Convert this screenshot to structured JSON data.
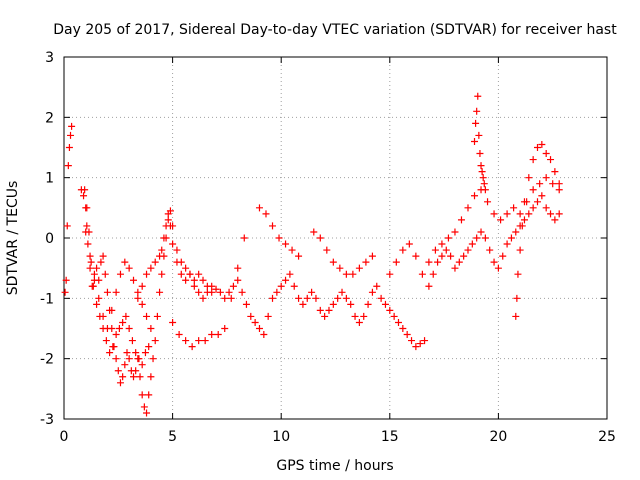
{
  "chart_data": {
    "type": "scatter",
    "title": "Day 205 of 2017, Sidereal Day-to-day VTEC variation (SDTVAR) for receiver hast",
    "xlabel": "GPS time / hours",
    "ylabel": "SDTVAR / TECUs",
    "xlim": [
      0,
      25
    ],
    "ylim": [
      -3,
      3
    ],
    "xticks": [
      0,
      5,
      10,
      15,
      20,
      25
    ],
    "yticks": [
      -3,
      -2,
      -1,
      0,
      1,
      2,
      3
    ],
    "grid": true,
    "marker": "+",
    "color": "#ff0000",
    "series": [
      {
        "name": "SDTVAR",
        "x": [
          0.05,
          0.1,
          0.15,
          0.2,
          0.25,
          0.3,
          0.35,
          0.8,
          0.9,
          1.0,
          1.05,
          1.1,
          1.2,
          1.3,
          1.4,
          1.5,
          1.6,
          1.7,
          1.8,
          1.9,
          2.0,
          2.1,
          2.2,
          2.3,
          2.4,
          2.5,
          2.6,
          2.7,
          2.8,
          2.9,
          3.0,
          3.1,
          3.2,
          3.3,
          3.4,
          3.5,
          3.6,
          3.7,
          3.8,
          3.9,
          4.0,
          4.1,
          4.2,
          4.3,
          4.4,
          4.5,
          4.6,
          4.7,
          4.8,
          4.9,
          5.0,
          5.2,
          5.4,
          5.6,
          5.8,
          6.0,
          6.2,
          6.4,
          6.6,
          6.8,
          7.0,
          7.2,
          7.4,
          7.6,
          7.8,
          0.95,
          1.05,
          1.15,
          1.25,
          1.35,
          1.5,
          1.65,
          1.8,
          1.95,
          2.1,
          2.25,
          2.4,
          2.55,
          2.7,
          2.85,
          3.0,
          3.15,
          3.3,
          3.45,
          3.6,
          3.75,
          3.9,
          1.0,
          1.2,
          1.4,
          1.6,
          1.8,
          2.0,
          2.2,
          2.4,
          2.6,
          2.8,
          3.0,
          3.2,
          3.4,
          3.6,
          3.8,
          4.0,
          3.4,
          3.6,
          3.8,
          4.0,
          4.2,
          4.4,
          4.5,
          4.6,
          4.7,
          4.8,
          4.9,
          5.0,
          5.2,
          5.4,
          5.6,
          5.8,
          6.0,
          6.2,
          6.4,
          6.6,
          6.8,
          5.0,
          5.3,
          5.6,
          5.9,
          6.2,
          6.5,
          6.8,
          7.1,
          7.4,
          7.7,
          8.0,
          8.3,
          8.0,
          8.2,
          8.4,
          8.6,
          8.8,
          9.0,
          9.2,
          9.4,
          9.6,
          9.8,
          10.0,
          10.2,
          10.4,
          10.6,
          10.8,
          11.0,
          11.2,
          11.4,
          11.6,
          11.8,
          12.0,
          12.2,
          12.4,
          12.6,
          12.8,
          13.0,
          13.2,
          13.4,
          13.6,
          13.8,
          14.0,
          14.2,
          14.4,
          14.6,
          14.8,
          15.0,
          15.2,
          15.4,
          15.6,
          15.8,
          16.0,
          16.2,
          16.4,
          16.6,
          9.0,
          9.3,
          9.6,
          9.9,
          10.2,
          10.5,
          10.8,
          11.5,
          11.8,
          12.1,
          12.4,
          12.7,
          13.0,
          13.3,
          13.6,
          13.9,
          14.2,
          15.0,
          15.3,
          15.6,
          15.9,
          16.2,
          16.5,
          16.8,
          17.1,
          17.4,
          17.7,
          18.0,
          18.3,
          18.6,
          18.9,
          19.2,
          19.5,
          19.8,
          20.1,
          20.4,
          20.7,
          21.0,
          21.3,
          21.6,
          21.9,
          22.2,
          22.5,
          22.8,
          16.8,
          17.0,
          17.2,
          17.4,
          17.6,
          17.8,
          18.0,
          18.2,
          18.4,
          18.6,
          18.8,
          19.0,
          19.2,
          19.4,
          19.6,
          19.8,
          20.0,
          20.2,
          20.4,
          20.6,
          20.8,
          21.0,
          21.2,
          21.4,
          21.6,
          21.8,
          22.0,
          22.2,
          22.4,
          22.6,
          22.8,
          18.9,
          18.95,
          19.0,
          19.05,
          19.1,
          19.15,
          19.2,
          19.25,
          19.3,
          19.35,
          19.4,
          20.8,
          20.85,
          20.9,
          21.0,
          21.1,
          21.2,
          21.4,
          21.6,
          21.8,
          22.0,
          22.2,
          22.4,
          22.6,
          22.8
        ],
        "y": [
          -0.9,
          -0.7,
          0.2,
          1.2,
          1.5,
          1.7,
          1.85,
          0.8,
          0.7,
          0.5,
          0.2,
          -0.1,
          -0.5,
          -0.8,
          -0.6,
          -0.5,
          -0.7,
          -0.4,
          -0.3,
          -0.6,
          -0.9,
          -1.2,
          -1.5,
          -1.8,
          -2.0,
          -2.2,
          -2.4,
          -2.3,
          -2.1,
          -1.9,
          -2.0,
          -2.2,
          -2.3,
          -2.2,
          -2.0,
          -2.3,
          -2.6,
          -2.8,
          -2.9,
          -2.6,
          -2.3,
          -2.0,
          -1.7,
          -1.3,
          -0.9,
          -0.6,
          -0.3,
          0.0,
          0.3,
          0.45,
          0.2,
          -0.2,
          -0.4,
          -0.5,
          -0.6,
          -0.7,
          -0.6,
          -0.7,
          -0.8,
          -0.9,
          -0.85,
          -0.9,
          -1.0,
          -0.9,
          -0.8,
          0.8,
          0.5,
          0.1,
          -0.4,
          -0.8,
          -1.1,
          -1.3,
          -1.5,
          -1.7,
          -1.9,
          -1.8,
          -1.6,
          -1.5,
          -1.4,
          -1.3,
          -1.5,
          -1.7,
          -1.9,
          -2.0,
          -2.1,
          -1.9,
          -1.8,
          0.1,
          -0.3,
          -0.7,
          -1.0,
          -1.3,
          -1.5,
          -1.2,
          -0.9,
          -0.6,
          -0.4,
          -0.5,
          -0.7,
          -0.9,
          -1.1,
          -1.3,
          -1.5,
          -1.0,
          -0.8,
          -0.6,
          -0.5,
          -0.4,
          -0.3,
          -0.2,
          0.0,
          0.2,
          0.4,
          0.2,
          -0.1,
          -0.4,
          -0.6,
          -0.7,
          -0.6,
          -0.8,
          -0.9,
          -1.0,
          -0.9,
          -0.8,
          -1.4,
          -1.6,
          -1.7,
          -1.8,
          -1.7,
          -1.7,
          -1.6,
          -1.6,
          -1.5,
          -1.0,
          -0.5,
          0.0,
          -0.7,
          -0.9,
          -1.1,
          -1.3,
          -1.4,
          -1.5,
          -1.6,
          -1.3,
          -1.0,
          -0.9,
          -0.8,
          -0.7,
          -0.6,
          -0.8,
          -1.0,
          -1.1,
          -1.0,
          -0.9,
          -1.0,
          -1.2,
          -1.3,
          -1.2,
          -1.1,
          -1.0,
          -0.9,
          -1.0,
          -1.1,
          -1.3,
          -1.4,
          -1.3,
          -1.1,
          -0.9,
          -0.8,
          -1.0,
          -1.1,
          -1.2,
          -1.3,
          -1.4,
          -1.5,
          -1.6,
          -1.7,
          -1.8,
          -1.75,
          -1.7,
          0.5,
          0.4,
          0.2,
          0.0,
          -0.1,
          -0.2,
          -0.3,
          0.1,
          0.0,
          -0.2,
          -0.4,
          -0.5,
          -0.6,
          -0.6,
          -0.5,
          -0.4,
          -0.3,
          -0.6,
          -0.4,
          -0.2,
          -0.1,
          -0.3,
          -0.6,
          -0.4,
          -0.2,
          -0.1,
          0.0,
          0.1,
          0.3,
          0.5,
          0.7,
          0.8,
          0.6,
          0.4,
          0.3,
          0.4,
          0.5,
          0.4,
          0.6,
          0.8,
          0.9,
          1.0,
          0.9,
          0.8,
          -0.8,
          -0.6,
          -0.4,
          -0.3,
          -0.2,
          -0.3,
          -0.5,
          -0.4,
          -0.3,
          -0.2,
          -0.1,
          0.0,
          0.1,
          0.0,
          -0.2,
          -0.4,
          -0.5,
          -0.3,
          -0.1,
          0.0,
          0.1,
          0.2,
          0.3,
          0.4,
          0.5,
          0.6,
          0.7,
          0.5,
          0.4,
          0.3,
          0.4,
          1.6,
          1.9,
          2.1,
          2.35,
          1.7,
          1.4,
          1.2,
          1.1,
          1.0,
          0.9,
          0.8,
          -1.3,
          -1.0,
          -0.6,
          -0.2,
          0.2,
          0.6,
          1.0,
          1.3,
          1.5,
          1.55,
          1.4,
          1.3,
          1.1,
          0.9
        ]
      }
    ]
  }
}
